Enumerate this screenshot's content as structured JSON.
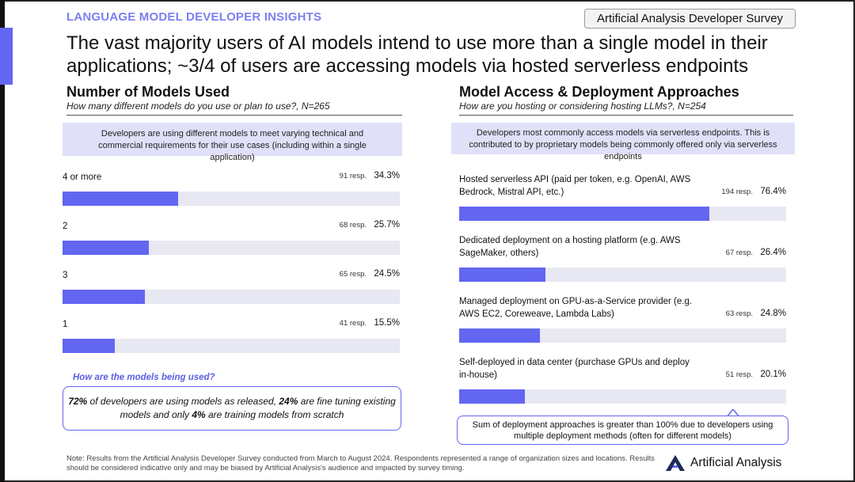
{
  "header": {
    "eyebrow": "LANGUAGE MODEL DEVELOPER INSIGHTS",
    "badge": "Artificial Analysis Developer Survey",
    "headline": "The vast majority users of AI models intend to use more than a single model in their applications; ~3/4 of users are accessing models via hosted serverless endpoints"
  },
  "left_section": {
    "title": "Number of Models Used",
    "subtitle": "How many different models do you use or plan to use?, N=265",
    "callout": "Developers are using different models to meet varying technical and commercial requirements for their use cases (including within a single application)",
    "usage_question": "How are the models being used?",
    "usage_parts": [
      {
        "text": "72%",
        "bold": true
      },
      {
        "text": " of developers are using models as released, ",
        "bold": false
      },
      {
        "text": "24%",
        "bold": true
      },
      {
        "text": " are fine tuning existing models and only ",
        "bold": false
      },
      {
        "text": "4%",
        "bold": true
      },
      {
        "text": " are training models from scratch",
        "bold": false
      }
    ]
  },
  "right_section": {
    "title": "Model Access & Deployment Approaches",
    "subtitle": "How are you hosting or considering hosting LLMs?, N=254",
    "callout": "Developers most commonly access models via serverless endpoints. This is contributed to by proprietary models being commonly offered only via serverless endpoints",
    "note": "Sum of deployment approaches is greater than 100% due to developers using multiple deployment methods (often for different models)"
  },
  "chart_data": [
    {
      "type": "bar",
      "orientation": "horizontal",
      "title": "Number of Models Used",
      "categories": [
        "4 or more",
        "2",
        "3",
        "1"
      ],
      "values": [
        34.3,
        25.7,
        24.5,
        15.5
      ],
      "values_display": [
        "34.3%",
        "25.7%",
        "24.5%",
        "15.5%"
      ],
      "responses": [
        "91 resp.",
        "68 resp.",
        "65 resp.",
        "41 resp."
      ],
      "xlim": [
        0,
        100
      ],
      "unit": "%"
    },
    {
      "type": "bar",
      "orientation": "horizontal",
      "title": "Model Access & Deployment Approaches",
      "categories": [
        "Hosted serverless API (paid per token, e.g. OpenAI, AWS Bedrock, Mistral API, etc.)",
        "Dedicated deployment on a hosting platform (e.g. AWS SageMaker, others)",
        "Managed deployment on GPU-as-a-Service provider (e.g. AWS EC2, Coreweave, Lambda Labs)",
        "Self-deployed in data center (purchase GPUs and deploy in-house)"
      ],
      "values": [
        76.4,
        26.4,
        24.8,
        20.1
      ],
      "values_display": [
        "76.4%",
        "26.4%",
        "24.8%",
        "20.1%"
      ],
      "responses": [
        "194 resp.",
        "67 resp.",
        "63 resp.",
        "51 resp."
      ],
      "xlim": [
        0,
        100
      ],
      "unit": "%"
    }
  ],
  "footer": {
    "note": "Note: Results from the Artificial Analysis Developer Survey conducted from March to August 2024. Respondents represented a range of organization sizes and locations. Results should be considered indicative only and may be biased by Artificial Analysis's audience and impacted by survey timing.",
    "brand": "Artificial Analysis",
    "brand_icon": "artificial-analysis-logo"
  },
  "colors": {
    "accent": "#6366f1",
    "eyebrow": "#7b7ff0",
    "track": "#e8e8f3",
    "callout_bg": "#e0e1f8"
  }
}
